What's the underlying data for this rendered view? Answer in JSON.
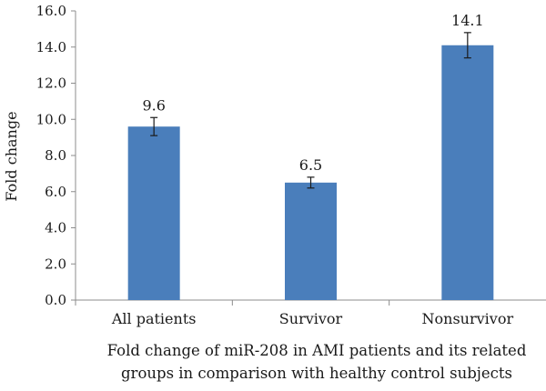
{
  "chart_data": {
    "type": "bar",
    "title": "",
    "ylabel": "Fold change",
    "xlabel_lines": [
      "Fold change of miR-208 in AMI patients and its related",
      "groups in comparison with healthy control subjects"
    ],
    "categories": [
      "All patients",
      "Survivor",
      "Nonsurvivor"
    ],
    "values": [
      9.6,
      6.5,
      14.1
    ],
    "data_labels": [
      "9.6",
      "6.5",
      "14.1"
    ],
    "error": [
      0.5,
      0.3,
      0.7
    ],
    "ylim": [
      0,
      16
    ],
    "yticks": [
      0,
      2,
      4,
      6,
      8,
      10,
      12,
      14,
      16
    ],
    "ytick_labels": [
      "0.0",
      "2.0",
      "4.0",
      "6.0",
      "8.0",
      "10.0",
      "12.0",
      "14.0",
      "16.0"
    ],
    "grid": false,
    "legend": "none",
    "colors": {
      "bar": "#4a7ebb",
      "axis": "#8c8c8c",
      "error_bar": "#1a1a1a"
    }
  }
}
